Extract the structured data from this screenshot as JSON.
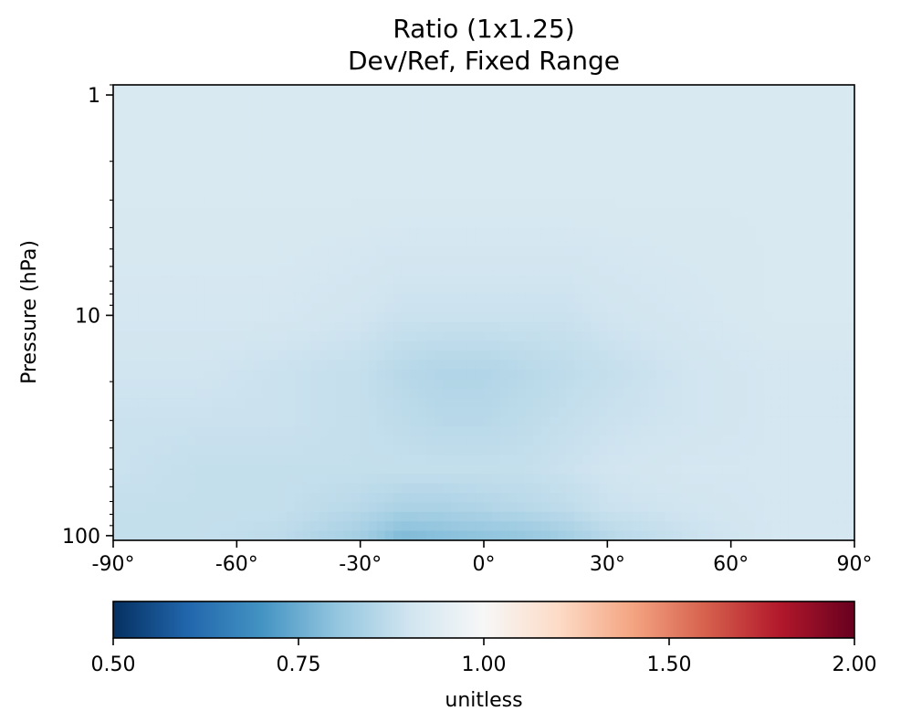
{
  "chart_data": {
    "type": "heatmap",
    "title": "Ratio (1x1.25)",
    "subtitle": "Dev/Ref, Fixed Range",
    "xlabel": "",
    "ylabel": "Pressure (hPa)",
    "x_range": [
      -90,
      90
    ],
    "x_ticks": [
      -90,
      -60,
      -30,
      0,
      30,
      60,
      90
    ],
    "x_tick_labels": [
      "-90°",
      "-60°",
      "-30°",
      "0°",
      "30°",
      "60°",
      "90°"
    ],
    "y_scale": "log",
    "y_inverted": true,
    "y_range": [
      105,
      0.9
    ],
    "y_ticks": [
      1,
      10,
      100
    ],
    "y_tick_labels": [
      "1",
      "10",
      "100"
    ],
    "grid": false,
    "colormap": "RdBu_r",
    "colorbar": {
      "label": "unitless",
      "range": [
        0.5,
        2.0
      ],
      "ticks": [
        0.5,
        0.75,
        1.0,
        1.5,
        2.0
      ],
      "tick_labels": [
        "0.50",
        "0.75",
        "1.00",
        "1.50",
        "2.00"
      ],
      "colors": [
        "#053061",
        "#2166ac",
        "#4393c3",
        "#92c5de",
        "#d1e5f0",
        "#f7f7f7",
        "#fddbc7",
        "#f4a582",
        "#d6604d",
        "#b2182b",
        "#67001f"
      ]
    },
    "lat": [
      -90,
      -70,
      -50,
      -30,
      -20,
      -10,
      0,
      10,
      20,
      30,
      50,
      70,
      90
    ],
    "pressure": [
      1,
      3,
      10,
      18,
      30,
      50,
      75,
      100
    ],
    "values": [
      [
        0.92,
        0.92,
        0.92,
        0.92,
        0.92,
        0.92,
        0.92,
        0.92,
        0.92,
        0.92,
        0.92,
        0.92,
        0.92
      ],
      [
        0.92,
        0.92,
        0.92,
        0.92,
        0.92,
        0.92,
        0.92,
        0.92,
        0.92,
        0.92,
        0.92,
        0.92,
        0.92
      ],
      [
        0.91,
        0.91,
        0.91,
        0.9,
        0.89,
        0.89,
        0.89,
        0.89,
        0.89,
        0.9,
        0.91,
        0.92,
        0.92
      ],
      [
        0.9,
        0.9,
        0.89,
        0.88,
        0.86,
        0.85,
        0.85,
        0.86,
        0.87,
        0.88,
        0.9,
        0.91,
        0.91
      ],
      [
        0.89,
        0.89,
        0.89,
        0.88,
        0.87,
        0.86,
        0.86,
        0.87,
        0.88,
        0.89,
        0.9,
        0.91,
        0.91
      ],
      [
        0.89,
        0.88,
        0.88,
        0.88,
        0.88,
        0.88,
        0.88,
        0.88,
        0.89,
        0.9,
        0.91,
        0.91,
        0.91
      ],
      [
        0.88,
        0.88,
        0.88,
        0.86,
        0.84,
        0.84,
        0.85,
        0.86,
        0.87,
        0.89,
        0.9,
        0.91,
        0.91
      ],
      [
        0.88,
        0.88,
        0.87,
        0.83,
        0.78,
        0.79,
        0.8,
        0.81,
        0.83,
        0.86,
        0.89,
        0.91,
        0.91
      ]
    ]
  }
}
